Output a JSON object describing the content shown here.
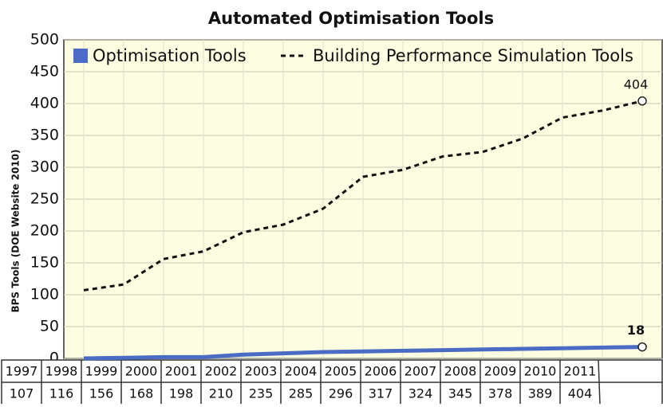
{
  "chart_data": {
    "type": "line",
    "title": "Automated Optimisation Tools",
    "y_label": "BPS Tools (DOE Website 2010)",
    "categories": [
      "1997",
      "1998",
      "1999",
      "2000",
      "2001",
      "2002",
      "2003",
      "2004",
      "2005",
      "2006",
      "2007",
      "2008",
      "2009",
      "2010",
      "2011"
    ],
    "series": [
      {
        "name": "Optimisation Tools",
        "color": "#4a6cc4",
        "style": "solid",
        "values": [
          0,
          1,
          2,
          2,
          6,
          8,
          10,
          11,
          12,
          13,
          14,
          15,
          16,
          17,
          18
        ]
      },
      {
        "name": "Building Performance Simulation Tools",
        "color": "#111111",
        "style": "dashed",
        "values": [
          107,
          116,
          156,
          168,
          198,
          210,
          235,
          285,
          296,
          317,
          324,
          345,
          378,
          389,
          404
        ]
      }
    ],
    "ylim": [
      0,
      500
    ],
    "yticks": [
      0,
      50,
      100,
      150,
      200,
      250,
      300,
      350,
      400,
      450,
      500
    ],
    "grid": true,
    "legend": "top"
  }
}
